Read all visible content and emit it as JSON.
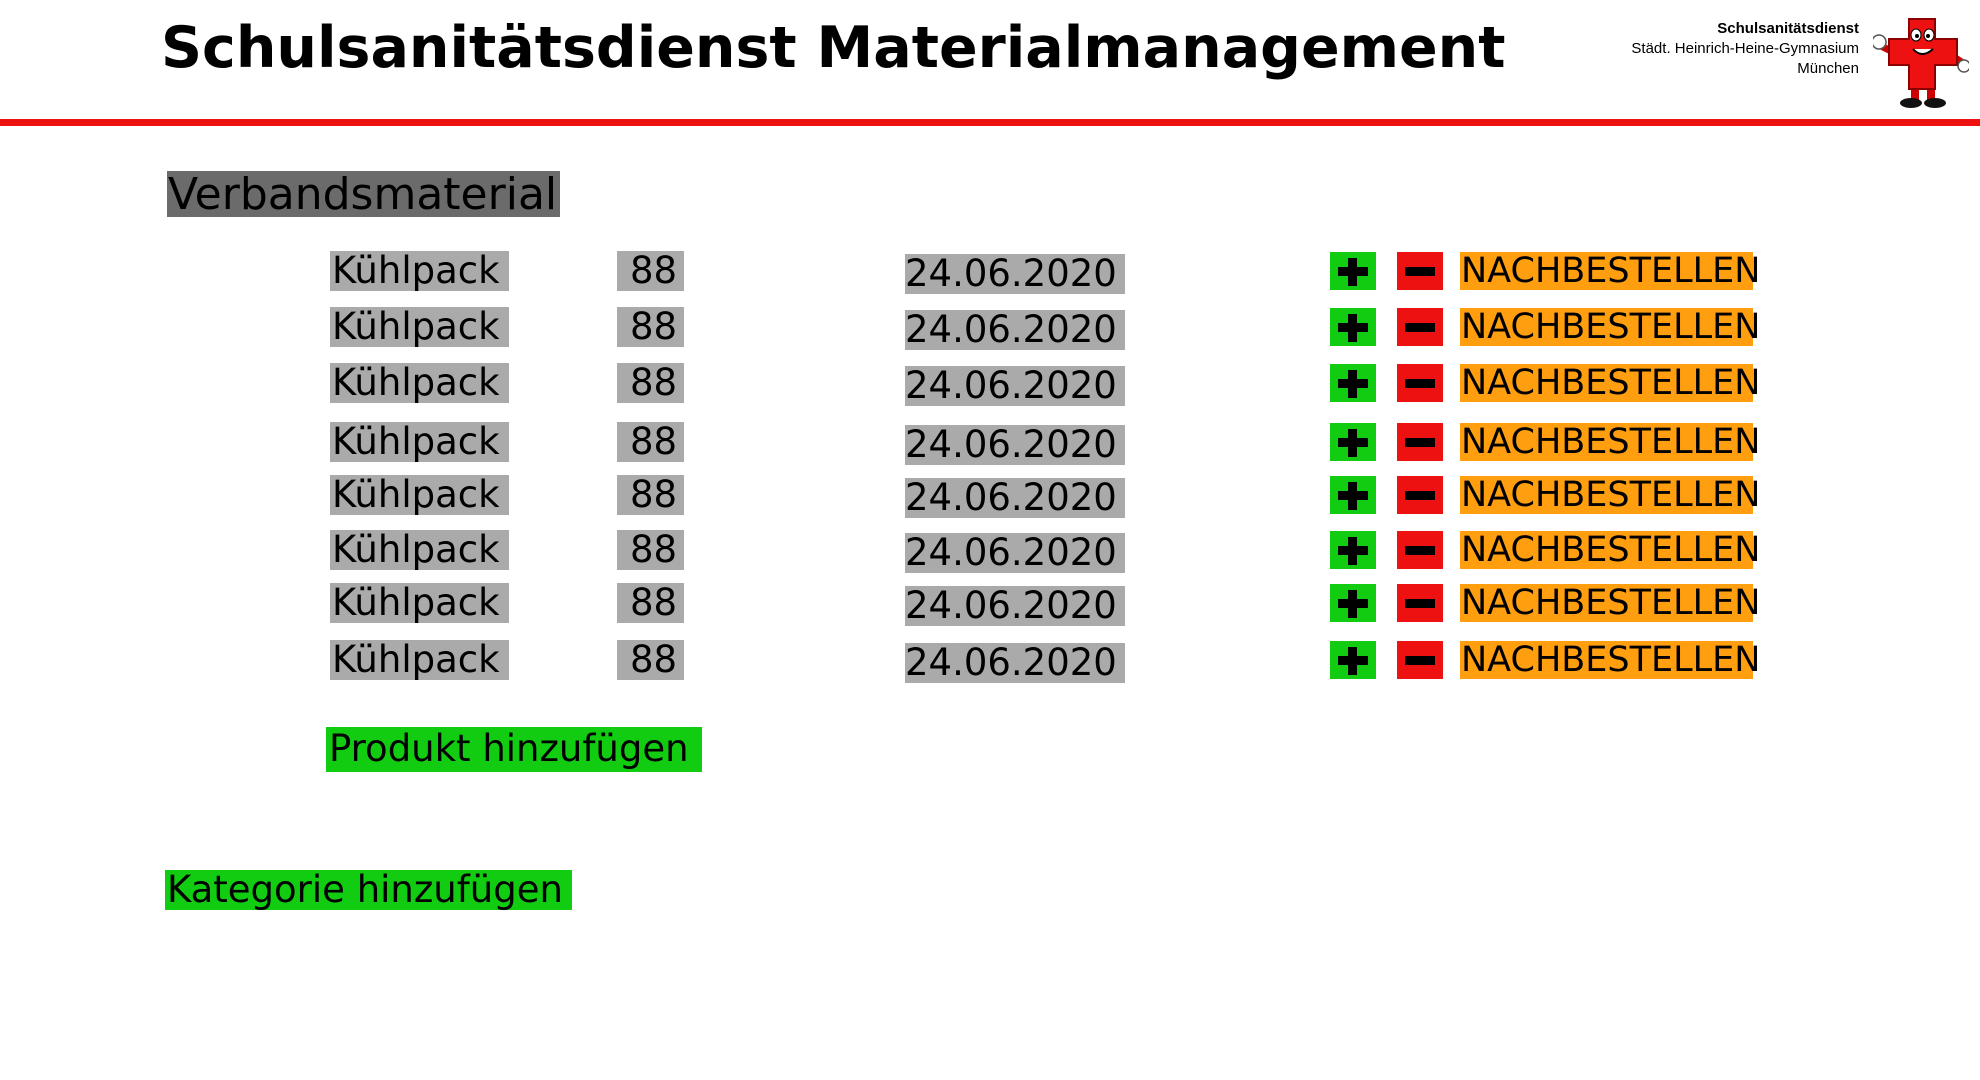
{
  "header": {
    "title": "Schulsanitätsdienst Materialmanagement",
    "brand_name": "Schulsanitätsdienst",
    "brand_school": "Städt. Heinrich-Heine-Gymnasium",
    "brand_city": "München",
    "accent_color": "#ee1111",
    "mascot_icon": "red-cross-mascot-icon"
  },
  "category": {
    "title": "Verbandsmaterial",
    "items": [
      {
        "name": "Kühlpack",
        "quantity": "88",
        "date": "24.06.2020",
        "reorder_label": "NACHBESTELLEN"
      },
      {
        "name": "Kühlpack",
        "quantity": "88",
        "date": "24.06.2020",
        "reorder_label": "NACHBESTELLEN"
      },
      {
        "name": "Kühlpack",
        "quantity": "88",
        "date": "24.06.2020",
        "reorder_label": "NACHBESTELLEN"
      },
      {
        "name": "Kühlpack",
        "quantity": "88",
        "date": "24.06.2020",
        "reorder_label": "NACHBESTELLEN"
      },
      {
        "name": "Kühlpack",
        "quantity": "88",
        "date": "24.06.2020",
        "reorder_label": "NACHBESTELLEN"
      },
      {
        "name": "Kühlpack",
        "quantity": "88",
        "date": "24.06.2020",
        "reorder_label": "NACHBESTELLEN"
      },
      {
        "name": "Kühlpack",
        "quantity": "88",
        "date": "24.06.2020",
        "reorder_label": "NACHBESTELLEN"
      },
      {
        "name": "Kühlpack",
        "quantity": "88",
        "date": "24.06.2020",
        "reorder_label": "NACHBESTELLEN"
      }
    ],
    "add_product_label": "Produkt hinzufügen"
  },
  "add_category_label": "Kategorie hinzufügen",
  "colors": {
    "plus_button": "#11cc11",
    "minus_button": "#ee1111",
    "reorder_button": "#ff9f10",
    "cell_background": "#aaaaaa",
    "category_background": "#6b6b6b"
  }
}
